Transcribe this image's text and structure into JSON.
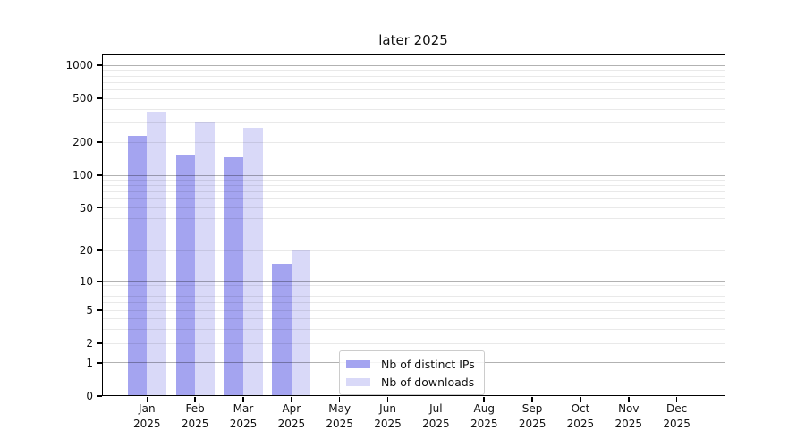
{
  "chart_data": {
    "type": "bar",
    "title": "later 2025",
    "categories": [
      "Jan 2025",
      "Feb 2025",
      "Mar 2025",
      "Apr 2025",
      "May 2025",
      "Jun 2025",
      "Jul 2025",
      "Aug 2025",
      "Sep 2025",
      "Oct 2025",
      "Nov 2025",
      "Dec 2025"
    ],
    "series": [
      {
        "name": "Nb of distinct IPs",
        "color": "#a4a4f0",
        "values": [
          230,
          155,
          147,
          15,
          0,
          0,
          0,
          0,
          0,
          0,
          0,
          0
        ]
      },
      {
        "name": "Nb of downloads",
        "color": "#d9d9f8",
        "values": [
          380,
          310,
          270,
          20,
          0,
          0,
          0,
          0,
          0,
          0,
          0,
          0
        ]
      }
    ],
    "xlabel": "",
    "ylabel": "",
    "yscale": "log(1+y)",
    "ylim": [
      0,
      1282
    ],
    "yticks": [
      0,
      1,
      2,
      5,
      10,
      20,
      50,
      100,
      200,
      500,
      1000
    ],
    "grid": {
      "orientation": "horizontal",
      "major_at": [
        1,
        10,
        100,
        1000
      ],
      "minor_at": [
        2,
        3,
        4,
        5,
        6,
        7,
        8,
        9,
        20,
        30,
        40,
        50,
        60,
        70,
        80,
        90,
        200,
        300,
        400,
        500,
        600,
        700,
        800,
        900
      ]
    },
    "legend_position": "lower center",
    "frame_color": "#000000",
    "background_color": "#ffffff"
  }
}
